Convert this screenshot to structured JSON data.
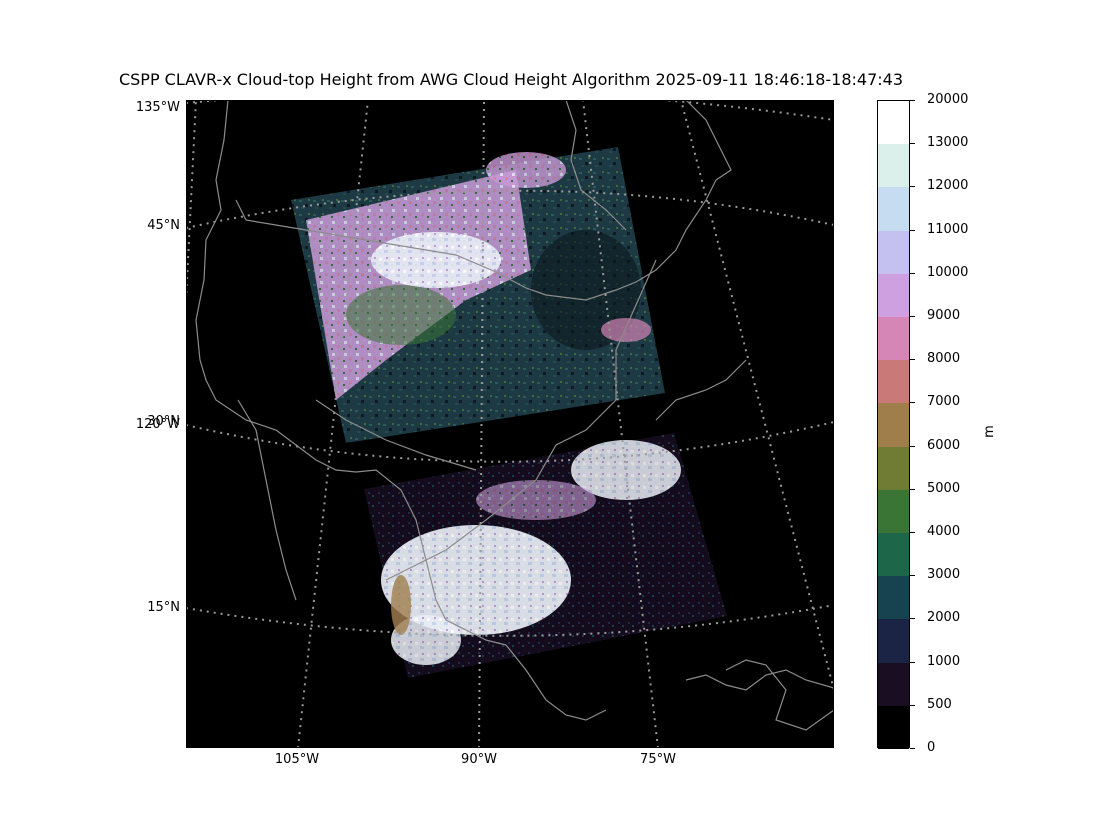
{
  "title": "CSPP CLAVR-x Cloud-top Height from AWG Cloud Height Algorithm 2025-09-11 18:46:18-18:47:43",
  "lat_labels": [
    "135°W",
    "45°N",
    "120°W",
    "30°N",
    "15°N"
  ],
  "lon_labels": [
    "105°W",
    "90°W",
    "75°W"
  ],
  "colorbar": {
    "unit": "m",
    "ticks": [
      "20000",
      "13000",
      "12000",
      "11000",
      "10000",
      "9000",
      "8000",
      "7000",
      "6000",
      "5000",
      "4000",
      "3000",
      "2000",
      "1000",
      "500",
      "0"
    ],
    "colors": [
      "#ffffff",
      "#dbf0ea",
      "#c6dcf1",
      "#c4c0f0",
      "#cfa0df",
      "#d586b6",
      "#c97a78",
      "#a07e4c",
      "#707c33",
      "#3b7536",
      "#1e6649",
      "#17424f",
      "#1b2444",
      "#1a0f22",
      "#000000"
    ]
  },
  "colors": {
    "ocean_land_background": "#000000",
    "coastline": "#8c8c8c",
    "graticule": "#9a9a9a"
  }
}
